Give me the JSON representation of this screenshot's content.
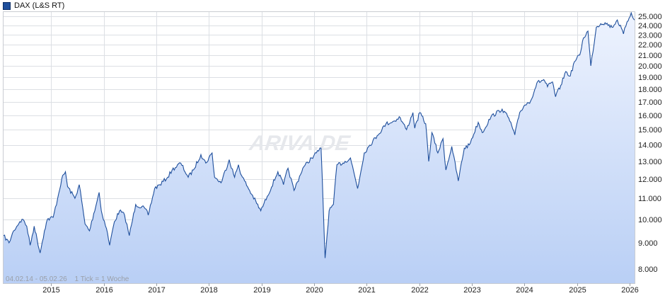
{
  "legend": {
    "label": "DAX (L&S RT)",
    "color": "#1f4f9c"
  },
  "footer": {
    "range": "04.02.14 - 05.02.26",
    "tick": "1 Tick = 1 Woche"
  },
  "watermark": "ARIVA.DE",
  "chart_data": {
    "type": "area",
    "title": "",
    "xlabel": "",
    "ylabel": "",
    "log_scale": true,
    "grid": true,
    "legend_position": "top-left",
    "x_ticks": [
      "2015",
      "2016",
      "2017",
      "2018",
      "2019",
      "2020",
      "2021",
      "2022",
      "2023",
      "2024",
      "2025",
      "2026"
    ],
    "y_ticks": [
      "8.000",
      "9.000",
      "10.000",
      "11.000",
      "12.000",
      "13.000",
      "14.000",
      "15.000",
      "16.000",
      "17.000",
      "18.000",
      "19.000",
      "20.000",
      "21.000",
      "22.000",
      "23.000",
      "24.000",
      "25.000"
    ],
    "y_tick_values": [
      8000,
      9000,
      10000,
      11000,
      12000,
      13000,
      14000,
      15000,
      16000,
      17000,
      18000,
      19000,
      20000,
      21000,
      22000,
      23000,
      24000,
      25000
    ],
    "ylim": [
      7500,
      25500
    ],
    "xlim": [
      "2014-02-04",
      "2026-02-05"
    ],
    "series": [
      {
        "color": "#1f4f9c",
        "fill_top": "#eef3fe",
        "fill_bottom": "#b9cff5",
        "points": [
          [
            "2014-02-04",
            9300
          ],
          [
            "2014-03-14",
            9000
          ],
          [
            "2014-04-15",
            9500
          ],
          [
            "2014-05-28",
            9900
          ],
          [
            "2014-06-20",
            10000
          ],
          [
            "2014-07-15",
            9700
          ],
          [
            "2014-08-08",
            8900
          ],
          [
            "2014-09-05",
            9700
          ],
          [
            "2014-10-16",
            8600
          ],
          [
            "2014-11-15",
            9500
          ],
          [
            "2014-12-05",
            10000
          ],
          [
            "2015-01-15",
            10100
          ],
          [
            "2015-02-15",
            11000
          ],
          [
            "2015-03-15",
            12000
          ],
          [
            "2015-04-10",
            12400
          ],
          [
            "2015-04-25",
            11600
          ],
          [
            "2015-06-15",
            11000
          ],
          [
            "2015-07-15",
            11700
          ],
          [
            "2015-08-24",
            9800
          ],
          [
            "2015-09-24",
            9500
          ],
          [
            "2015-11-30",
            11300
          ],
          [
            "2015-12-15",
            10400
          ],
          [
            "2016-01-20",
            9600
          ],
          [
            "2016-02-11",
            8900
          ],
          [
            "2016-03-15",
            9900
          ],
          [
            "2016-04-20",
            10400
          ],
          [
            "2016-05-25",
            10200
          ],
          [
            "2016-06-27",
            9300
          ],
          [
            "2016-08-10",
            10700
          ],
          [
            "2016-10-15",
            10500
          ],
          [
            "2016-11-05",
            10200
          ],
          [
            "2016-12-20",
            11500
          ],
          [
            "2017-01-25",
            11700
          ],
          [
            "2017-03-20",
            12100
          ],
          [
            "2017-04-20",
            12500
          ],
          [
            "2017-06-19",
            12900
          ],
          [
            "2017-08-10",
            12100
          ],
          [
            "2017-09-15",
            12500
          ],
          [
            "2017-11-06",
            13400
          ],
          [
            "2017-12-10",
            12900
          ],
          [
            "2018-01-23",
            13500
          ],
          [
            "2018-02-09",
            12100
          ],
          [
            "2018-03-26",
            11800
          ],
          [
            "2018-05-22",
            13100
          ],
          [
            "2018-06-28",
            12100
          ],
          [
            "2018-07-25",
            12800
          ],
          [
            "2018-08-15",
            12200
          ],
          [
            "2018-10-25",
            11200
          ],
          [
            "2018-12-27",
            10400
          ],
          [
            "2019-02-10",
            11100
          ],
          [
            "2019-04-25",
            12400
          ],
          [
            "2019-06-03",
            11700
          ],
          [
            "2019-07-04",
            12600
          ],
          [
            "2019-08-15",
            11400
          ],
          [
            "2019-10-15",
            12600
          ],
          [
            "2019-12-15",
            13200
          ],
          [
            "2020-01-17",
            13500
          ],
          [
            "2020-02-19",
            13800
          ],
          [
            "2020-03-18",
            8400
          ],
          [
            "2020-04-15",
            10400
          ],
          [
            "2020-05-15",
            10700
          ],
          [
            "2020-06-08",
            12800
          ],
          [
            "2020-07-20",
            12900
          ],
          [
            "2020-09-10",
            13200
          ],
          [
            "2020-10-30",
            11500
          ],
          [
            "2020-12-15",
            13500
          ],
          [
            "2021-01-15",
            13900
          ],
          [
            "2021-03-15",
            14600
          ],
          [
            "2021-05-15",
            15400
          ],
          [
            "2021-07-15",
            15600
          ],
          [
            "2021-08-15",
            15900
          ],
          [
            "2021-10-05",
            15000
          ],
          [
            "2021-11-18",
            16200
          ],
          [
            "2021-12-01",
            15100
          ],
          [
            "2022-01-05",
            16200
          ],
          [
            "2022-02-15",
            15400
          ],
          [
            "2022-03-08",
            13000
          ],
          [
            "2022-03-30",
            14800
          ],
          [
            "2022-05-10",
            13500
          ],
          [
            "2022-06-15",
            14400
          ],
          [
            "2022-07-05",
            12500
          ],
          [
            "2022-08-15",
            13900
          ],
          [
            "2022-09-29",
            11900
          ],
          [
            "2022-11-10",
            13800
          ],
          [
            "2022-12-15",
            14000
          ],
          [
            "2023-02-15",
            15500
          ],
          [
            "2023-03-15",
            14800
          ],
          [
            "2023-05-15",
            15900
          ],
          [
            "2023-07-31",
            16450
          ],
          [
            "2023-09-15",
            15800
          ],
          [
            "2023-10-27",
            14650
          ],
          [
            "2023-11-30",
            16200
          ],
          [
            "2023-12-30",
            16700
          ],
          [
            "2024-02-15",
            17100
          ],
          [
            "2024-03-28",
            18500
          ],
          [
            "2024-05-15",
            18800
          ],
          [
            "2024-06-10",
            18200
          ],
          [
            "2024-07-15",
            18600
          ],
          [
            "2024-08-05",
            17400
          ],
          [
            "2024-09-10",
            18300
          ],
          [
            "2024-10-15",
            19500
          ],
          [
            "2024-11-15",
            19100
          ],
          [
            "2024-12-15",
            20400
          ],
          [
            "2025-01-20",
            21000
          ],
          [
            "2025-02-15",
            22700
          ],
          [
            "2025-03-18",
            23400
          ],
          [
            "2025-04-07",
            20000
          ],
          [
            "2025-05-15",
            23800
          ],
          [
            "2025-06-15",
            24200
          ],
          [
            "2025-07-15",
            24300
          ],
          [
            "2025-09-01",
            23800
          ],
          [
            "2025-10-08",
            24600
          ],
          [
            "2025-11-20",
            23100
          ],
          [
            "2025-12-15",
            24400
          ],
          [
            "2026-01-13",
            25400
          ],
          [
            "2026-02-05",
            24600
          ]
        ]
      }
    ]
  }
}
